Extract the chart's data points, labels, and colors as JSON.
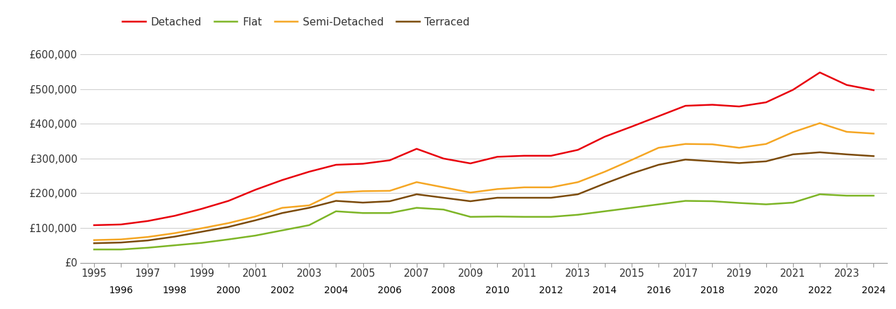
{
  "years": [
    1995,
    1996,
    1997,
    1998,
    1999,
    2000,
    2001,
    2002,
    2003,
    2004,
    2005,
    2006,
    2007,
    2008,
    2009,
    2010,
    2011,
    2012,
    2013,
    2014,
    2015,
    2016,
    2017,
    2018,
    2019,
    2020,
    2021,
    2022,
    2023,
    2024
  ],
  "detached": [
    108000,
    110000,
    120000,
    135000,
    155000,
    178000,
    210000,
    238000,
    262000,
    282000,
    285000,
    295000,
    328000,
    300000,
    286000,
    305000,
    308000,
    308000,
    325000,
    363000,
    392000,
    422000,
    452000,
    455000,
    450000,
    462000,
    498000,
    548000,
    512000,
    497000
  ],
  "flat": [
    38000,
    38000,
    43000,
    50000,
    57000,
    67000,
    78000,
    93000,
    108000,
    148000,
    143000,
    143000,
    158000,
    153000,
    132000,
    133000,
    132000,
    132000,
    138000,
    148000,
    158000,
    168000,
    178000,
    177000,
    172000,
    168000,
    173000,
    197000,
    193000,
    193000
  ],
  "semi_detached": [
    65000,
    67000,
    74000,
    85000,
    99000,
    114000,
    133000,
    158000,
    165000,
    202000,
    206000,
    207000,
    232000,
    217000,
    202000,
    212000,
    217000,
    217000,
    232000,
    262000,
    296000,
    331000,
    342000,
    341000,
    331000,
    342000,
    376000,
    402000,
    377000,
    372000
  ],
  "terraced": [
    56000,
    58000,
    64000,
    75000,
    89000,
    103000,
    122000,
    143000,
    158000,
    178000,
    173000,
    177000,
    197000,
    187000,
    177000,
    187000,
    187000,
    187000,
    197000,
    228000,
    257000,
    282000,
    297000,
    292000,
    287000,
    292000,
    312000,
    318000,
    312000,
    307000
  ],
  "colors": {
    "detached": "#e8000b",
    "flat": "#7db526",
    "semi_detached": "#f5a623",
    "terraced": "#7b4a0a"
  },
  "ylim": [
    0,
    650000
  ],
  "yticks": [
    0,
    100000,
    200000,
    300000,
    400000,
    500000,
    600000
  ],
  "ytick_labels": [
    "£0",
    "£100,000",
    "£200,000",
    "£300,000",
    "£400,000",
    "£500,000",
    "£600,000"
  ],
  "legend_labels": [
    "Detached",
    "Flat",
    "Semi-Detached",
    "Terraced"
  ],
  "grid_color": "#d0d0d0",
  "background_color": "#ffffff",
  "line_width": 1.8,
  "font_size_tick": 10.5,
  "font_size_legend": 11
}
